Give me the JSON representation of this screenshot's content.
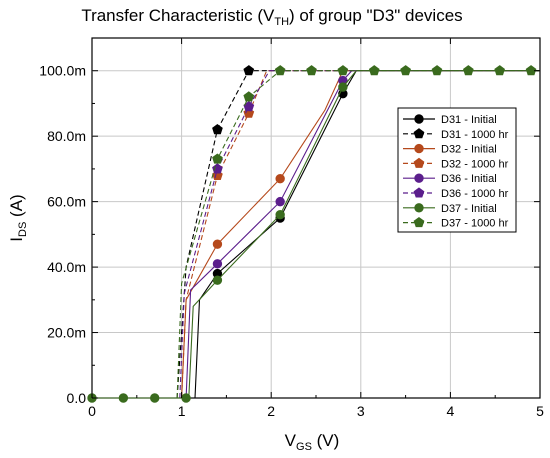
{
  "chart_data": {
    "type": "line",
    "title_main": "Transfer Characteristic (V",
    "title_sub": "TH",
    "title_rest": ") of group \"D3\" devices",
    "xlabel_main": "V",
    "xlabel_sub": "GS",
    "xlabel_rest": " (V)",
    "ylabel_main": "I",
    "ylabel_sub": "DS",
    "ylabel_rest": " (A)",
    "xlim": [
      0,
      5
    ],
    "ylim": [
      0,
      0.11
    ],
    "x_ticks": [
      0,
      1,
      2,
      3,
      4,
      5
    ],
    "y_ticks": [
      0,
      0.02,
      0.04,
      0.06,
      0.08,
      0.1
    ],
    "x_tick_labels": [
      "0",
      "1",
      "2",
      "3",
      "4",
      "5"
    ],
    "y_tick_labels": [
      "0.0",
      "20.0m",
      "40.0m",
      "60.0m",
      "80.0m",
      "100.0m"
    ],
    "grid": true,
    "legend_position": "right",
    "series": [
      {
        "name": "D31 - Initial",
        "color": "#000000",
        "dashed": false,
        "marker": "circle",
        "x": [
          1.15,
          1.2,
          1.4,
          2.1,
          2.8,
          2.95,
          3.1,
          5
        ],
        "y": [
          0,
          0.03,
          0.038,
          0.055,
          0.093,
          0.1,
          0.1,
          0.1
        ],
        "marker_x": [
          1.4,
          2.1,
          2.8
        ],
        "marker_y": [
          0.038,
          0.055,
          0.093
        ]
      },
      {
        "name": "D31 - 1000 hr",
        "color": "#000000",
        "dashed": true,
        "marker": "pentagon",
        "x": [
          0.95,
          1.0,
          1.05,
          1.4,
          1.75,
          1.9,
          5
        ],
        "y": [
          0,
          0.02,
          0.04,
          0.082,
          0.1,
          0.1,
          0.1
        ],
        "marker_x": [
          1.4,
          1.75
        ],
        "marker_y": [
          0.082,
          0.1
        ]
      },
      {
        "name": "D32 - Initial",
        "color": "#b5491c",
        "dashed": false,
        "marker": "circle",
        "x": [
          1.0,
          1.05,
          1.4,
          2.1,
          2.6,
          2.8,
          5
        ],
        "y": [
          0,
          0.03,
          0.047,
          0.067,
          0.088,
          0.1,
          0.1
        ],
        "marker_x": [
          1.4,
          2.1
        ],
        "marker_y": [
          0.047,
          0.067
        ]
      },
      {
        "name": "D32 - 1000 hr",
        "color": "#b5491c",
        "dashed": true,
        "marker": "pentagon",
        "x": [
          1.0,
          1.05,
          1.4,
          1.75,
          1.95,
          5
        ],
        "y": [
          0,
          0.03,
          0.068,
          0.087,
          0.1,
          0.1
        ],
        "marker_x": [
          1.4,
          1.75
        ],
        "marker_y": [
          0.068,
          0.087
        ]
      },
      {
        "name": "D36 - Initial",
        "color": "#5b1e8c",
        "dashed": false,
        "marker": "circle",
        "x": [
          1.05,
          1.1,
          1.4,
          2.1,
          2.8,
          2.9,
          5
        ],
        "y": [
          0,
          0.033,
          0.041,
          0.06,
          0.097,
          0.1,
          0.1
        ],
        "marker_x": [
          1.4,
          2.1,
          2.8
        ],
        "marker_y": [
          0.041,
          0.06,
          0.097
        ]
      },
      {
        "name": "D36 - 1000 hr",
        "color": "#5b1e8c",
        "dashed": true,
        "marker": "pentagon",
        "x": [
          0.98,
          1.03,
          1.4,
          1.75,
          1.98,
          5
        ],
        "y": [
          0,
          0.032,
          0.07,
          0.089,
          0.1,
          0.1
        ],
        "marker_x": [
          1.4,
          1.75
        ],
        "marker_y": [
          0.07,
          0.089
        ]
      },
      {
        "name": "D37 - Initial",
        "color": "#3a6b1e",
        "dashed": false,
        "marker": "circle",
        "x": [
          0,
          1.08,
          1.13,
          1.4,
          2.1,
          2.8,
          2.95,
          5
        ],
        "y": [
          0,
          0,
          0.028,
          0.036,
          0.056,
          0.095,
          0.1,
          0.1
        ],
        "marker_x": [
          0,
          0.35,
          0.7,
          1.05,
          1.4,
          2.1,
          2.8
        ],
        "marker_y": [
          0,
          0,
          0,
          0,
          0.036,
          0.056,
          0.095
        ]
      },
      {
        "name": "D37 - 1000 hr",
        "color": "#3a6b1e",
        "dashed": true,
        "marker": "pentagon",
        "x": [
          0.95,
          1.0,
          1.4,
          1.75,
          2.1,
          5
        ],
        "y": [
          0,
          0.035,
          0.073,
          0.092,
          0.1,
          0.1
        ],
        "marker_x": [
          1.4,
          1.75,
          2.1,
          2.45,
          2.8,
          3.15,
          3.5,
          3.85,
          4.2,
          4.55,
          4.9
        ],
        "marker_y": [
          0.073,
          0.092,
          0.1,
          0.1,
          0.1,
          0.1,
          0.1,
          0.1,
          0.1,
          0.1,
          0.1
        ]
      }
    ]
  }
}
